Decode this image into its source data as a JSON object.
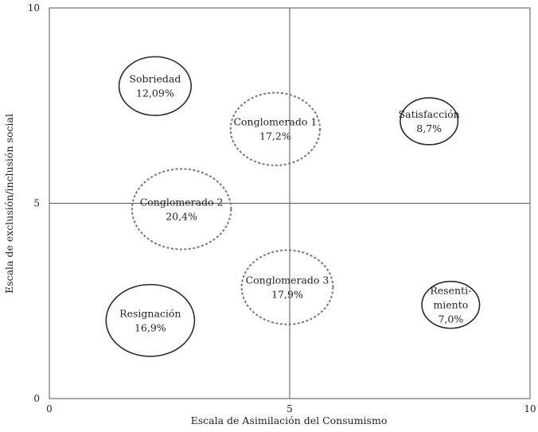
{
  "chart_data": {
    "type": "scatter",
    "title": "",
    "xlabel": "Escala de Asimilación del Consumismo",
    "ylabel": "Escala de exclusión/inclusión social",
    "xlim": [
      0,
      10
    ],
    "ylim": [
      0,
      10
    ],
    "x_ticks": [
      "0",
      "5",
      "10"
    ],
    "y_ticks": [
      "0",
      "5",
      "10"
    ],
    "grid": false,
    "quadrant_lines": {
      "x": 5,
      "y": 5
    },
    "points": [
      {
        "lines": [
          "Sobriedad",
          "12,09%"
        ],
        "x": 2.2,
        "y": 8.0,
        "r": 0.75,
        "style": "solid"
      },
      {
        "lines": [
          "Conglomerado 1",
          "17,2%"
        ],
        "x": 4.7,
        "y": 6.9,
        "r": 0.93,
        "style": "dashed"
      },
      {
        "lines": [
          "Satisfacción",
          "8,7%"
        ],
        "x": 7.9,
        "y": 7.1,
        "r": 0.6,
        "style": "solid"
      },
      {
        "lines": [
          "Conglomerado 2",
          "20,4%"
        ],
        "x": 2.75,
        "y": 4.85,
        "r": 1.03,
        "style": "dashed"
      },
      {
        "lines": [
          "Conglomerado 3",
          "17,9%"
        ],
        "x": 4.95,
        "y": 2.85,
        "r": 0.95,
        "style": "dashed"
      },
      {
        "lines": [
          "Resignación",
          "16,9%"
        ],
        "x": 2.1,
        "y": 2.0,
        "r": 0.92,
        "style": "solid"
      },
      {
        "lines": [
          "Resenti-",
          "miento",
          "7,0%"
        ],
        "x": 8.35,
        "y": 2.4,
        "r": 0.6,
        "style": "solid"
      }
    ],
    "colors": {
      "axis": "#555555",
      "bubble": "#2b2b2b",
      "dashed_bubble": "#777777"
    }
  }
}
